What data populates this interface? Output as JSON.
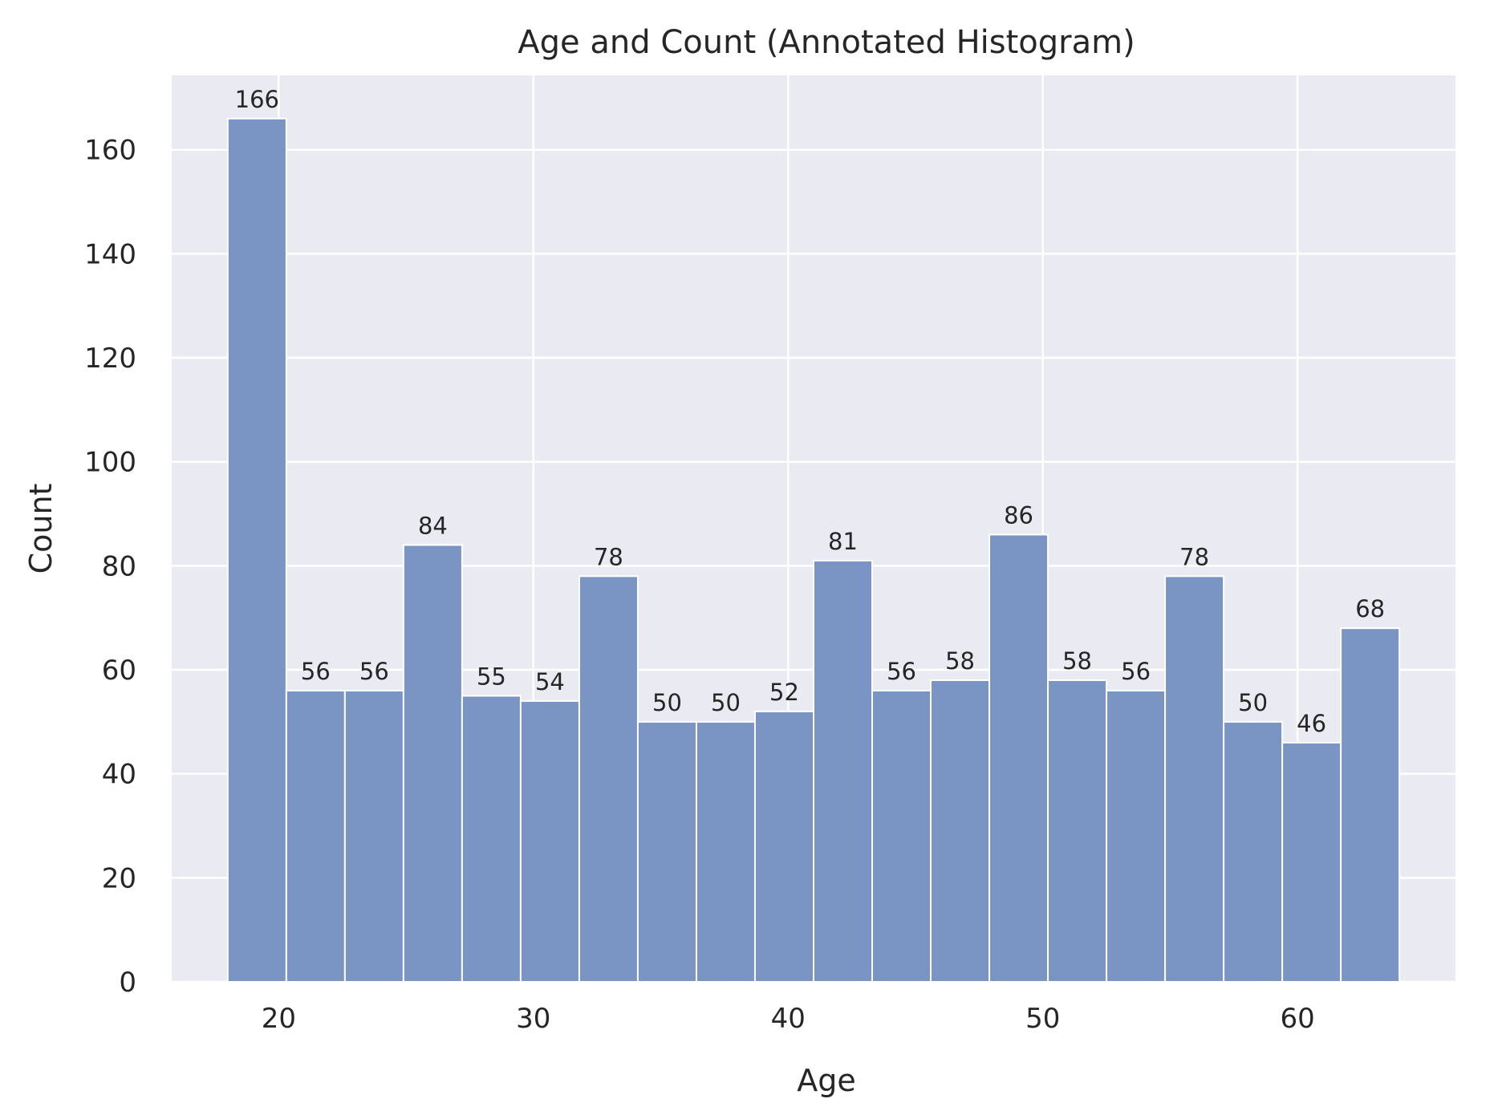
{
  "chart_data": {
    "type": "bar",
    "title": "Age and Count (Annotated Histogram)",
    "xlabel": "Age",
    "ylabel": "Count",
    "bin_start": 18,
    "bin_width": 2.3,
    "values": [
      166,
      56,
      56,
      84,
      55,
      54,
      78,
      50,
      50,
      52,
      81,
      56,
      58,
      86,
      58,
      56,
      78,
      50,
      46,
      68
    ],
    "xlim": [
      15.8,
      66.2
    ],
    "ylim": [
      0,
      174.3
    ],
    "xticks": [
      20,
      30,
      40,
      50,
      60
    ],
    "yticks": [
      0,
      20,
      40,
      60,
      80,
      100,
      120,
      140,
      160
    ],
    "grid": true,
    "colors": {
      "bar": "#7a95c4",
      "plot_background": "#eaeaf2",
      "grid": "#ffffff",
      "text": "#262626"
    }
  }
}
